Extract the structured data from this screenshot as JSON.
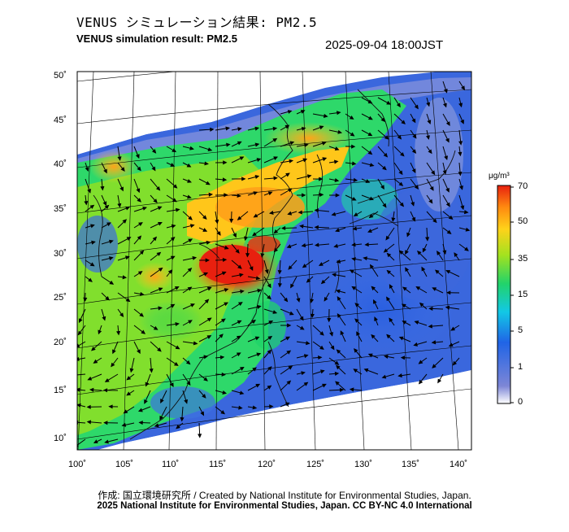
{
  "header": {
    "title_jp": "VENUS シミュレーション結果: PM2.5",
    "title_en": "VENUS simulation result: PM2.5",
    "timestamp": "2025-09-04 18:00JST"
  },
  "map": {
    "projection": "conic",
    "lon_labels": [
      "100˚",
      "105˚",
      "110˚",
      "115˚",
      "120˚",
      "125˚",
      "130˚",
      "135˚",
      "140˚"
    ],
    "lat_labels": [
      "50˚",
      "45˚",
      "40˚",
      "35˚",
      "30˚",
      "25˚",
      "20˚",
      "15˚",
      "10˚"
    ],
    "lon_range": [
      100,
      140
    ],
    "lat_range": [
      10,
      50
    ],
    "field": "PM2.5 concentration with wind vectors"
  },
  "colorbar": {
    "unit": "μg/m³",
    "ticks": [
      "70",
      "50",
      "35",
      "15",
      "5",
      "1",
      "0"
    ],
    "colors": [
      "#ffffff",
      "#6a79d4",
      "#1f6fe0",
      "#19c4e0",
      "#1fd36a",
      "#9fe01f",
      "#ffd21a",
      "#ff8a10",
      "#e8200f"
    ]
  },
  "footer": {
    "credit": "作成: 国立環境研究所 / Created by National Institute for Environmental Studies, Japan.",
    "copyright": "2025 National Institute for Environmental Studies, Japan. CC BY-NC 4.0 International"
  }
}
